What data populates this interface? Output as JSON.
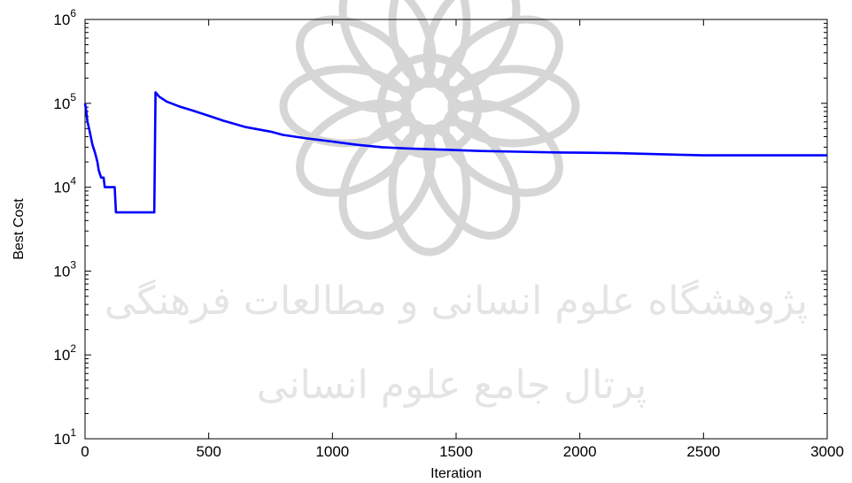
{
  "chart_data": {
    "type": "line",
    "title": "",
    "xlabel": "Iteration",
    "ylabel": "Best Cost",
    "xlim": [
      0,
      3000
    ],
    "ylim": [
      10,
      1000000
    ],
    "yscale": "log",
    "grid": false,
    "x_ticks": [
      0,
      500,
      1000,
      1500,
      2000,
      2500,
      3000
    ],
    "x_tick_labels": [
      "0",
      "500",
      "1000",
      "1500",
      "2000",
      "2500",
      "3000"
    ],
    "y_ticks": [
      10,
      100,
      1000,
      10000,
      100000,
      1000000
    ],
    "y_tick_labels": [
      {
        "base": "10",
        "exp": "1"
      },
      {
        "base": "10",
        "exp": "2"
      },
      {
        "base": "10",
        "exp": "3"
      },
      {
        "base": "10",
        "exp": "4"
      },
      {
        "base": "10",
        "exp": "5"
      },
      {
        "base": "10",
        "exp": "6"
      }
    ],
    "series": [
      {
        "color": "#0000ff",
        "x": [
          0,
          5,
          10,
          15,
          22,
          30,
          40,
          50,
          55,
          65,
          75,
          80,
          85,
          120,
          125,
          280,
          285,
          300,
          330,
          380,
          430,
          500,
          560,
          650,
          750,
          800,
          900,
          1000,
          1100,
          1200,
          1300,
          1450,
          1600,
          1750,
          1900,
          2000,
          2150,
          2500,
          3000
        ],
        "y": [
          100000,
          80000,
          60000,
          52000,
          42000,
          32000,
          26000,
          20000,
          16000,
          13000,
          13000,
          10000,
          10000,
          10000,
          5000,
          5000,
          135000,
          120000,
          105000,
          92000,
          83000,
          71000,
          62000,
          52000,
          46000,
          42000,
          38000,
          35000,
          32000,
          30000,
          29000,
          28000,
          27000,
          26500,
          26000,
          25800,
          25500,
          24000,
          24000
        ]
      }
    ]
  },
  "watermark": {
    "line1": "پژوهشگاه علوم انسانی و مطالعات فرهنگی",
    "line2": "پرتال جامع علوم انسانی"
  }
}
